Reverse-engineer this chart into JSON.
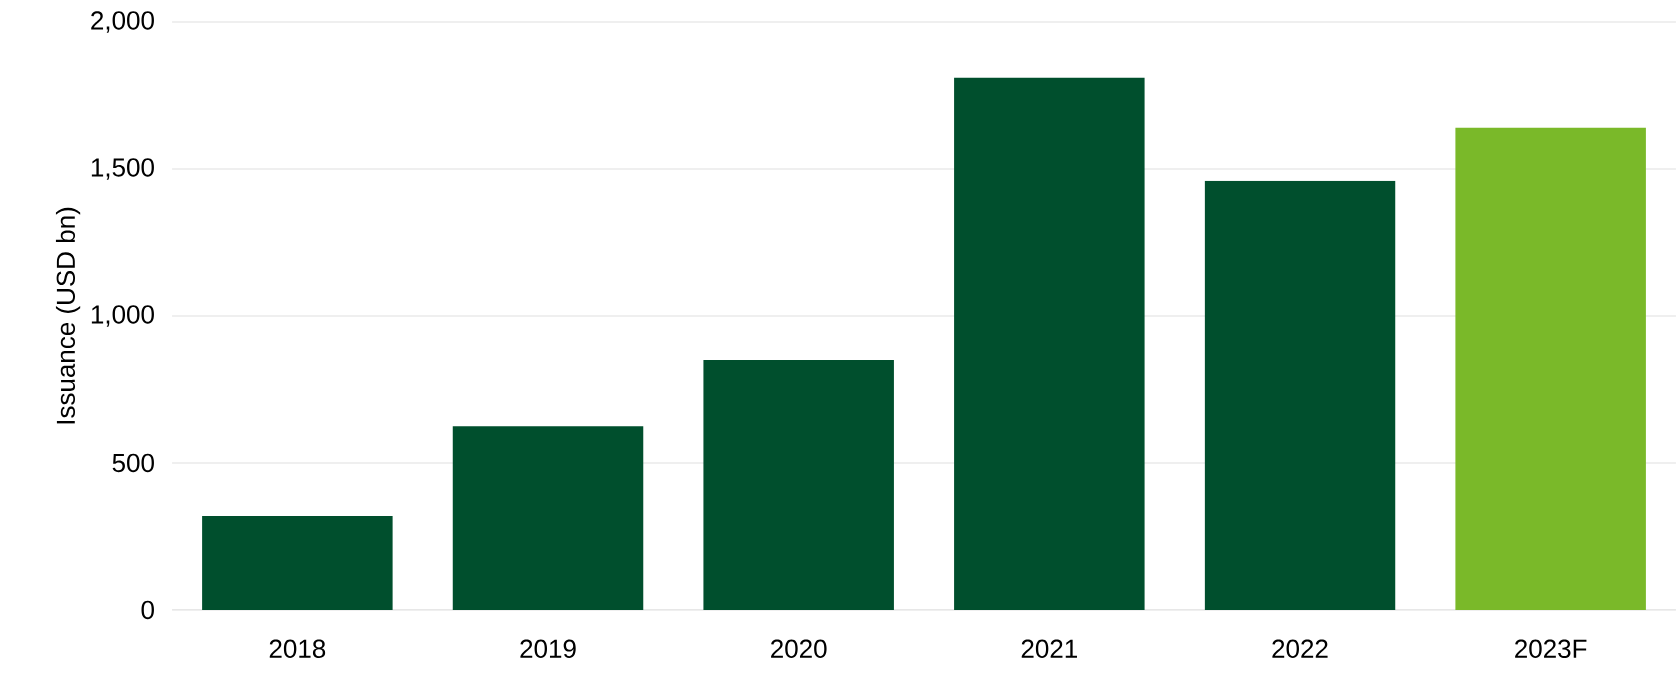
{
  "chart_data": {
    "type": "bar",
    "ylabel": "Issuance (USD bn)",
    "categories": [
      "2018",
      "2019",
      "2020",
      "2021",
      "2022",
      "2023F"
    ],
    "values": [
      320,
      625,
      850,
      1810,
      1460,
      1640
    ],
    "colors": [
      "#004f2d",
      "#004f2d",
      "#004f2d",
      "#004f2d",
      "#004f2d",
      "#7ab929"
    ],
    "ylim": [
      0,
      2000
    ],
    "yticks": [
      0,
      500,
      {
        "value": 1000,
        "label": "1,000"
      },
      {
        "value": 1500,
        "label": "1,500"
      },
      {
        "value": 2000,
        "label": "2,000"
      }
    ],
    "grid": "y"
  }
}
